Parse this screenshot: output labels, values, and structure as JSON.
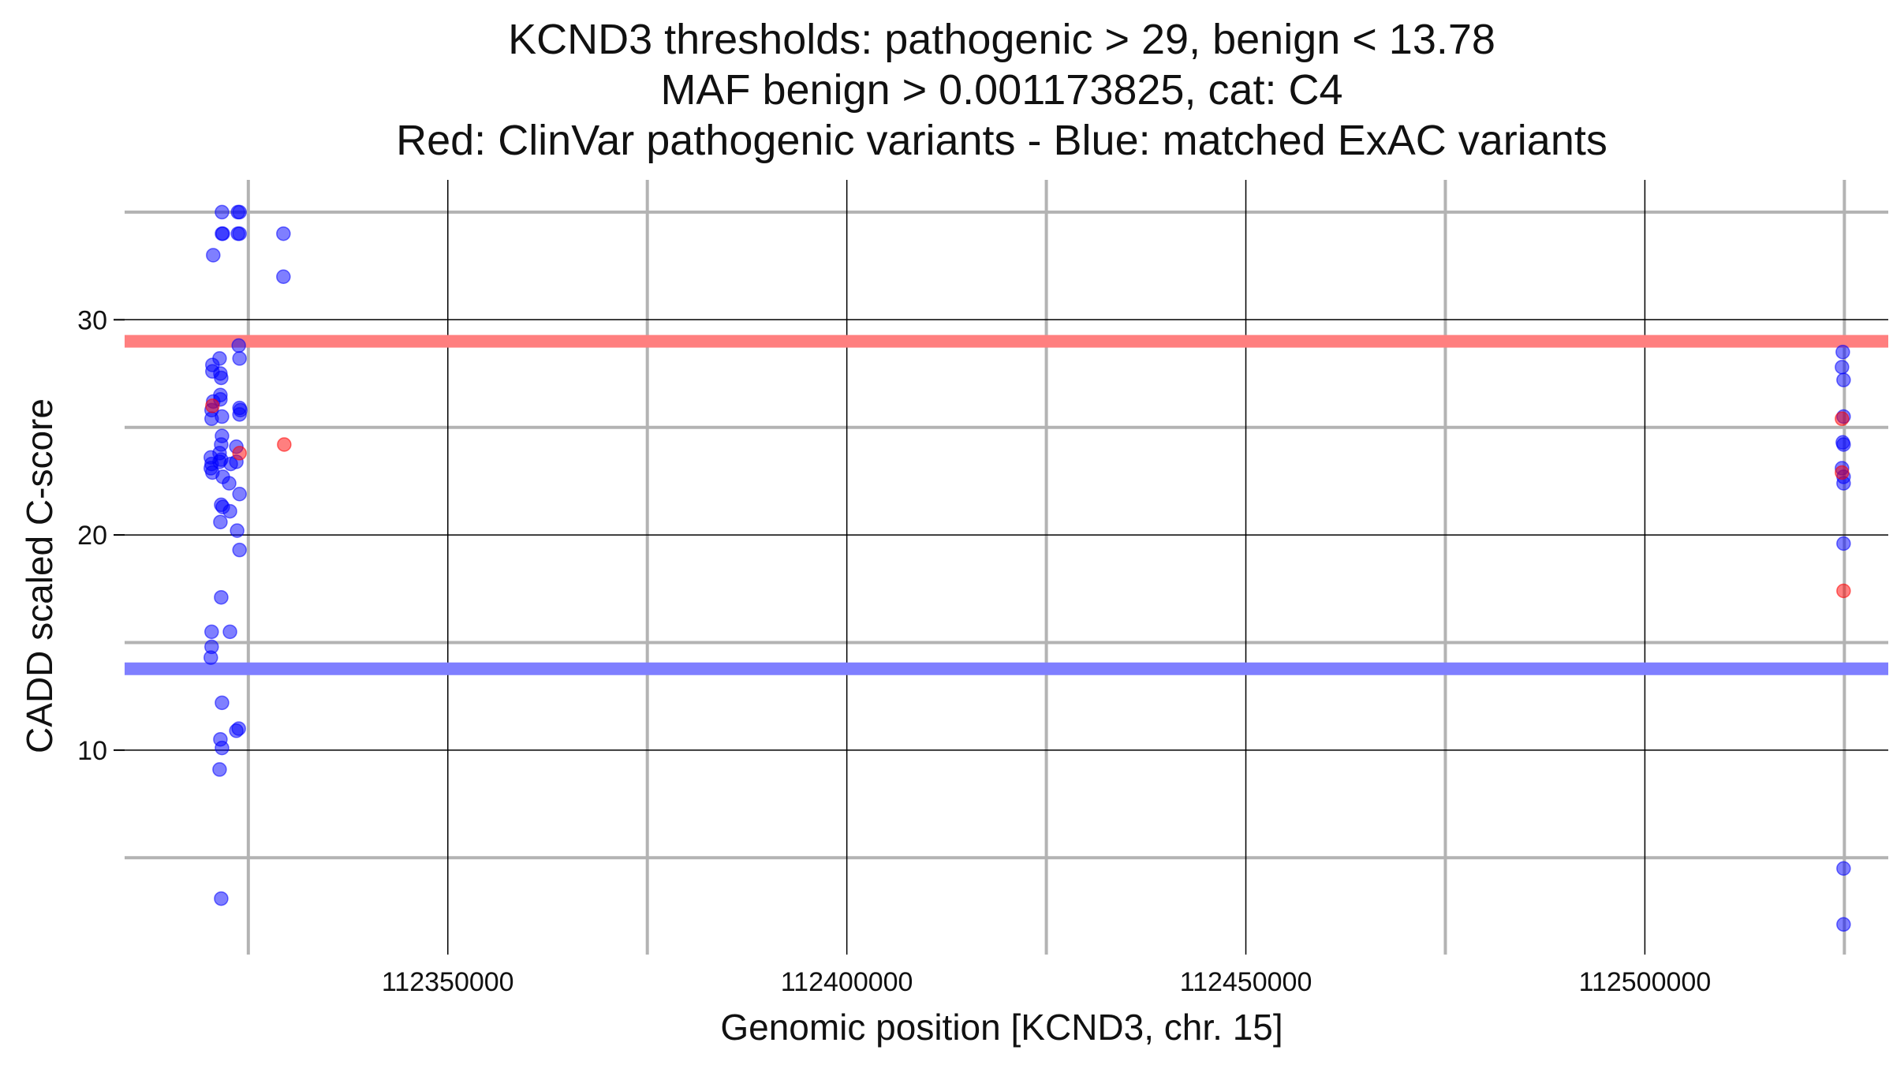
{
  "chart_data": {
    "type": "scatter",
    "title": [
      "KCND3 thresholds: pathogenic > 29, benign < 13.78",
      "MAF benign > 0.001173825, cat: C4",
      "Red: ClinVar pathogenic variants - Blue: matched ExAC variants"
    ],
    "xlabel": "Genomic position [KCND3, chr. 15]",
    "ylabel": "CADD scaled C-score",
    "xlim": [
      112309500,
      112530500
    ],
    "ylim": [
      0.5,
      36.5
    ],
    "x_ticks": [
      112350000,
      112400000,
      112450000,
      112500000
    ],
    "x_tick_labels": [
      "112350000",
      "112400000",
      "112450000",
      "112500000"
    ],
    "x_minor_grid": [
      112325000,
      112375000,
      112425000,
      112475000,
      112525000
    ],
    "y_ticks": [
      10,
      20,
      30
    ],
    "y_tick_labels": [
      "10",
      "20",
      "30"
    ],
    "y_minor_grid": [
      5,
      15,
      25,
      35
    ],
    "grid": true,
    "thresholds": [
      {
        "name": "pathogenic",
        "value": 29,
        "color": "#ff7f7f"
      },
      {
        "name": "benign",
        "value": 13.78,
        "color": "#7f7fff"
      }
    ],
    "colors": {
      "clinvar": "#ff0000",
      "exac": "#0000ff"
    },
    "series": [
      {
        "key": "exac",
        "points": [
          {
            "x": 112321700,
            "y": 35
          },
          {
            "x": 112321700,
            "y": 34
          },
          {
            "x": 112321800,
            "y": 34
          },
          {
            "x": 112320600,
            "y": 33
          },
          {
            "x": 112323700,
            "y": 35
          },
          {
            "x": 112323900,
            "y": 35
          },
          {
            "x": 112323700,
            "y": 34
          },
          {
            "x": 112323900,
            "y": 34
          },
          {
            "x": 112329400,
            "y": 34
          },
          {
            "x": 112329400,
            "y": 32
          },
          {
            "x": 112320500,
            "y": 27.9
          },
          {
            "x": 112320500,
            "y": 27.6
          },
          {
            "x": 112321400,
            "y": 28.2
          },
          {
            "x": 112321500,
            "y": 27.5
          },
          {
            "x": 112321600,
            "y": 27.3
          },
          {
            "x": 112320600,
            "y": 26.2
          },
          {
            "x": 112321500,
            "y": 26.5
          },
          {
            "x": 112321500,
            "y": 26.3
          },
          {
            "x": 112320400,
            "y": 25.8
          },
          {
            "x": 112320400,
            "y": 25.4
          },
          {
            "x": 112321700,
            "y": 25.5
          },
          {
            "x": 112321700,
            "y": 24.6
          },
          {
            "x": 112321600,
            "y": 24.2
          },
          {
            "x": 112321400,
            "y": 23.8
          },
          {
            "x": 112320300,
            "y": 23.6
          },
          {
            "x": 112320400,
            "y": 23.3
          },
          {
            "x": 112320300,
            "y": 23.1
          },
          {
            "x": 112320500,
            "y": 22.9
          },
          {
            "x": 112321600,
            "y": 23.5
          },
          {
            "x": 112321400,
            "y": 23.4
          },
          {
            "x": 112322800,
            "y": 23.3
          },
          {
            "x": 112321800,
            "y": 22.7
          },
          {
            "x": 112322600,
            "y": 22.4
          },
          {
            "x": 112321600,
            "y": 21.4
          },
          {
            "x": 112321800,
            "y": 21.3
          },
          {
            "x": 112322700,
            "y": 21.1
          },
          {
            "x": 112321500,
            "y": 20.6
          },
          {
            "x": 112323800,
            "y": 28.8
          },
          {
            "x": 112323900,
            "y": 28.2
          },
          {
            "x": 112323900,
            "y": 25.9
          },
          {
            "x": 112324000,
            "y": 25.8
          },
          {
            "x": 112323900,
            "y": 25.6
          },
          {
            "x": 112323500,
            "y": 24.1
          },
          {
            "x": 112323500,
            "y": 23.4
          },
          {
            "x": 112323900,
            "y": 21.9
          },
          {
            "x": 112323600,
            "y": 20.2
          },
          {
            "x": 112323900,
            "y": 19.3
          },
          {
            "x": 112321600,
            "y": 17.1
          },
          {
            "x": 112320400,
            "y": 15.5
          },
          {
            "x": 112322700,
            "y": 15.5
          },
          {
            "x": 112320400,
            "y": 14.8
          },
          {
            "x": 112320300,
            "y": 14.3
          },
          {
            "x": 112321700,
            "y": 12.2
          },
          {
            "x": 112323500,
            "y": 10.9
          },
          {
            "x": 112323800,
            "y": 11
          },
          {
            "x": 112321500,
            "y": 10.5
          },
          {
            "x": 112321700,
            "y": 10.1
          },
          {
            "x": 112321400,
            "y": 9.1
          },
          {
            "x": 112321600,
            "y": 3.1
          },
          {
            "x": 112524800,
            "y": 28.5
          },
          {
            "x": 112524700,
            "y": 27.8
          },
          {
            "x": 112524900,
            "y": 27.2
          },
          {
            "x": 112524900,
            "y": 25.5
          },
          {
            "x": 112524800,
            "y": 24.3
          },
          {
            "x": 112524900,
            "y": 24.2
          },
          {
            "x": 112524700,
            "y": 23.1
          },
          {
            "x": 112524900,
            "y": 22.7
          },
          {
            "x": 112524900,
            "y": 22.4
          },
          {
            "x": 112524900,
            "y": 19.6
          },
          {
            "x": 112524900,
            "y": 4.5
          },
          {
            "x": 112524900,
            "y": 1.9
          }
        ]
      },
      {
        "key": "clinvar",
        "points": [
          {
            "x": 112320500,
            "y": 26
          },
          {
            "x": 112323900,
            "y": 23.8
          },
          {
            "x": 112329500,
            "y": 24.2
          },
          {
            "x": 112524700,
            "y": 25.4
          },
          {
            "x": 112524700,
            "y": 22.9
          },
          {
            "x": 112524900,
            "y": 17.4
          }
        ]
      }
    ]
  }
}
